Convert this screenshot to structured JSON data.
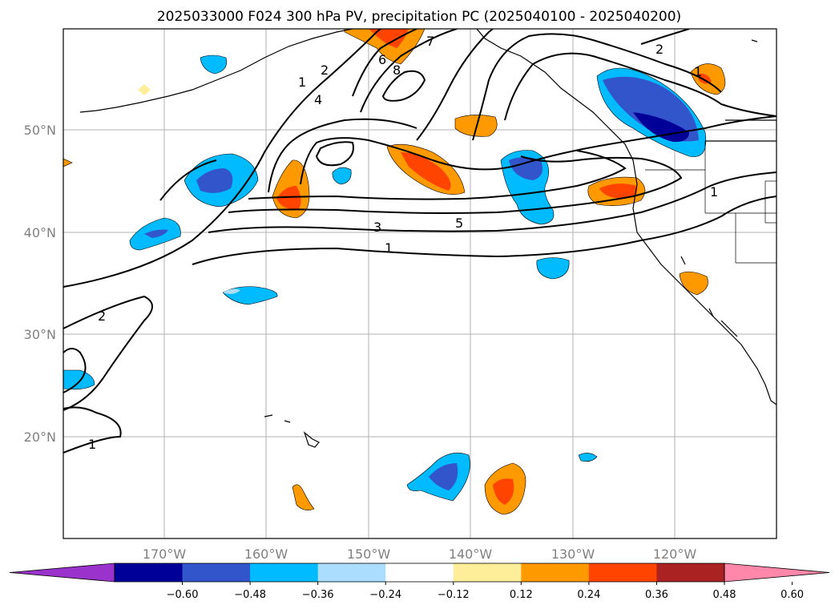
{
  "title": "2025033000 F024 300 hPa PV, precipitation PC (2025040100 - 2025040200)",
  "map": {
    "lon_ticks": [
      "170°W",
      "160°W",
      "150°W",
      "140°W",
      "130°W",
      "120°W"
    ],
    "lat_ticks": [
      "50°N",
      "40°N",
      "30°N",
      "20°N"
    ],
    "contour_labels": [
      "1",
      "2",
      "4",
      "6",
      "8",
      "7",
      "2",
      "1",
      "3",
      "5",
      "1",
      "2",
      "1",
      "1"
    ],
    "grid": true
  },
  "colorbar": {
    "ticks": [
      "−0.60",
      "−0.48",
      "−0.36",
      "−0.24",
      "−0.12",
      "0.12",
      "0.24",
      "0.36",
      "0.48",
      "0.60"
    ],
    "colors": [
      "#9933cc",
      "#000099",
      "#3355cc",
      "#00bbff",
      "#aaddff",
      "#ffffff",
      "#ffee99",
      "#ff9900",
      "#ff4400",
      "#aa2222",
      "#ff88aa"
    ],
    "extend": "both"
  }
}
